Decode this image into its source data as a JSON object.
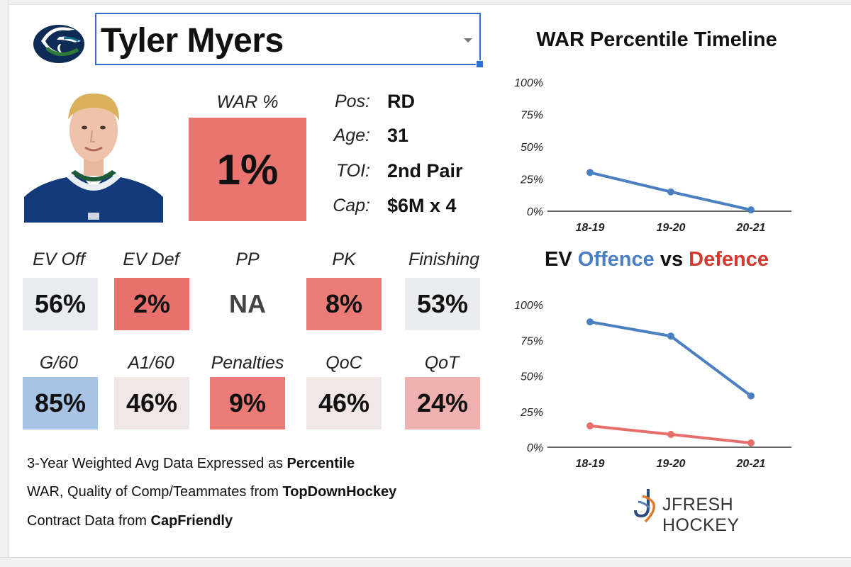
{
  "player": {
    "name": "Tyler Myers",
    "team_logo": "canucks-orca-logo"
  },
  "war": {
    "label": "WAR %",
    "value": "1%",
    "color": "#ea7470"
  },
  "info": [
    {
      "label": "Pos:",
      "value": "RD"
    },
    {
      "label": "Age:",
      "value": "31"
    },
    {
      "label": "TOI:",
      "value": "2nd Pair"
    },
    {
      "label": "Cap:",
      "value": "$6M x 4"
    }
  ],
  "metrics_row1": [
    {
      "label": "EV Off",
      "value": "56%",
      "color": "#e8ebf0"
    },
    {
      "label": "EV Def",
      "value": "2%",
      "color": "#e9716d"
    },
    {
      "label": "PP",
      "value": "NA",
      "color": "#ffffff"
    },
    {
      "label": "PK",
      "value": "8%",
      "color": "#eb7b77"
    },
    {
      "label": "Finishing",
      "value": "53%",
      "color": "#ebecef"
    }
  ],
  "metrics_row2": [
    {
      "label": "G/60",
      "value": "85%",
      "color": "#a7c4e4"
    },
    {
      "label": "A1/60",
      "value": "46%",
      "color": "#f2e7e7"
    },
    {
      "label": "Penalties",
      "value": "9%",
      "color": "#eb7b77"
    },
    {
      "label": "QoC",
      "value": "46%",
      "color": "#f2e7e7"
    },
    {
      "label": "QoT",
      "value": "24%",
      "color": "#efb0b0"
    }
  ],
  "footnotes": [
    {
      "text": "3-Year Weighted Avg Data Expressed as ",
      "bold": "Percentile"
    },
    {
      "text": "WAR, Quality of Comp/Teammates from ",
      "bold": "TopDownHockey"
    },
    {
      "text": "Contract Data from ",
      "bold": "CapFriendly"
    }
  ],
  "brand": {
    "name": "JFRESH HOCKEY"
  },
  "chart_titles": {
    "war_timeline": "WAR Percentile Timeline",
    "ev_prefix": "EV ",
    "ev_offence": "Offence",
    "ev_vs": " vs ",
    "ev_defence": "Defence"
  },
  "chart_data": [
    {
      "type": "line",
      "title": "WAR Percentile Timeline",
      "categories": [
        "18-19",
        "19-20",
        "20-21"
      ],
      "series": [
        {
          "name": "WAR",
          "values": [
            30,
            15,
            1
          ],
          "color": "#4a7fc1"
        }
      ],
      "ylim": [
        0,
        100
      ],
      "yticks": [
        "0%",
        "25%",
        "50%",
        "75%",
        "100%"
      ]
    },
    {
      "type": "line",
      "title": "EV Offence vs Defence",
      "categories": [
        "18-19",
        "19-20",
        "20-21"
      ],
      "series": [
        {
          "name": "Offence",
          "values": [
            88,
            78,
            36
          ],
          "color": "#4a7fc1"
        },
        {
          "name": "Defence",
          "values": [
            15,
            9,
            3
          ],
          "color": "#e66f6b"
        }
      ],
      "ylim": [
        0,
        100
      ],
      "yticks": [
        "0%",
        "25%",
        "50%",
        "75%",
        "100%"
      ]
    }
  ]
}
